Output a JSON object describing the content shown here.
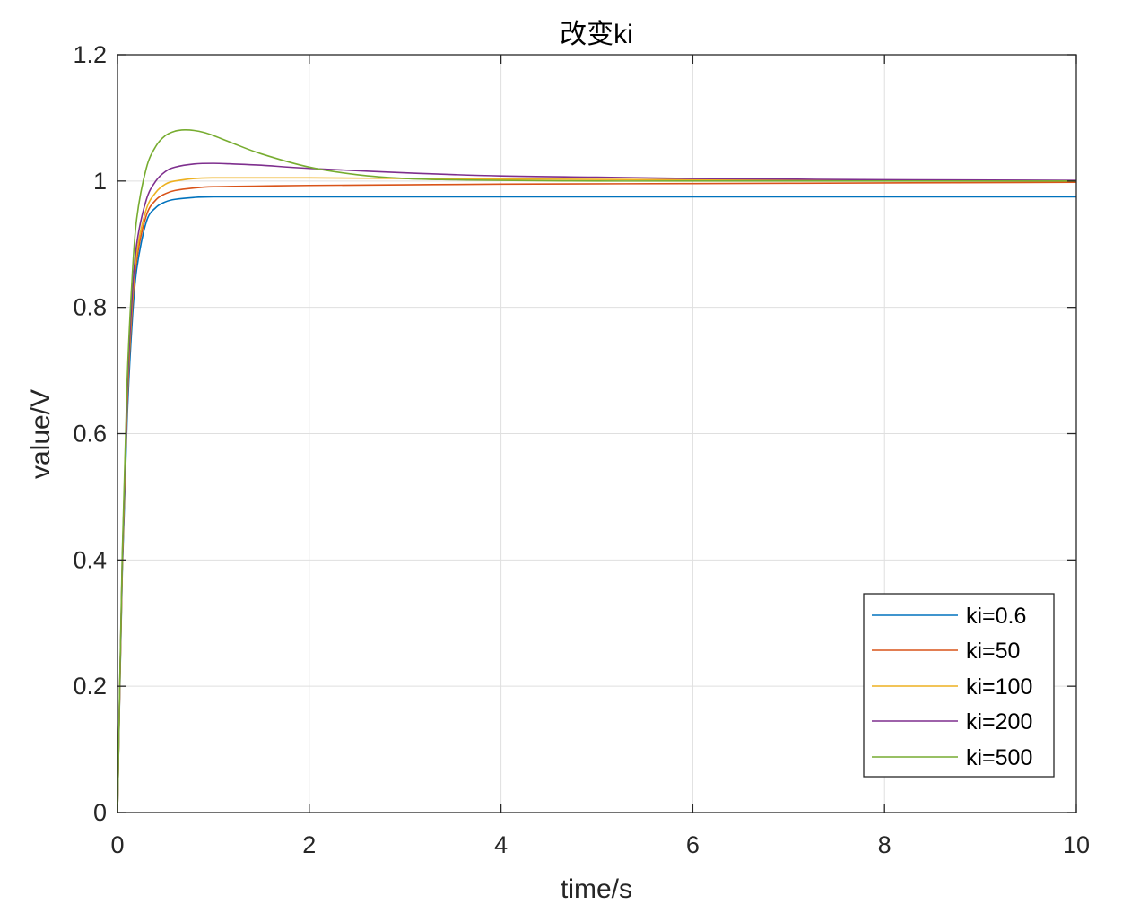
{
  "chart_data": {
    "type": "line",
    "title": "改变ki",
    "xlabel": "time/s",
    "ylabel": "value/V",
    "xlim": [
      0,
      10
    ],
    "ylim": [
      0,
      1.2
    ],
    "xticks": [
      0,
      2,
      4,
      6,
      8,
      10
    ],
    "yticks": [
      0,
      0.2,
      0.4,
      0.6,
      0.8,
      1,
      1.2
    ],
    "xtick_labels": [
      "0",
      "2",
      "4",
      "6",
      "8",
      "10"
    ],
    "ytick_labels": [
      "0",
      "0.2",
      "0.4",
      "0.6",
      "0.8",
      "1",
      "1.2"
    ],
    "grid": true,
    "legend_position": "bottom-right",
    "series": [
      {
        "name": "ki=0.6",
        "color": "#0072BD",
        "x": [
          0,
          0.05,
          0.1,
          0.15,
          0.2,
          0.3,
          0.4,
          0.5,
          0.6,
          0.8,
          1.0,
          1.5,
          2,
          3,
          4,
          6,
          8,
          10
        ],
        "y": [
          0,
          0.38,
          0.62,
          0.77,
          0.86,
          0.935,
          0.958,
          0.967,
          0.971,
          0.974,
          0.975,
          0.975,
          0.975,
          0.975,
          0.975,
          0.975,
          0.975,
          0.975
        ]
      },
      {
        "name": "ki=50",
        "color": "#D95319",
        "x": [
          0,
          0.05,
          0.1,
          0.15,
          0.2,
          0.3,
          0.4,
          0.5,
          0.6,
          0.8,
          1.0,
          1.5,
          2,
          3,
          4,
          6,
          8,
          10
        ],
        "y": [
          0,
          0.39,
          0.64,
          0.79,
          0.875,
          0.945,
          0.97,
          0.98,
          0.985,
          0.989,
          0.991,
          0.992,
          0.993,
          0.994,
          0.995,
          0.996,
          0.997,
          0.998
        ]
      },
      {
        "name": "ki=100",
        "color": "#EDB120",
        "x": [
          0,
          0.05,
          0.1,
          0.15,
          0.2,
          0.3,
          0.4,
          0.5,
          0.6,
          0.8,
          1.0,
          1.5,
          2,
          3,
          4,
          6,
          8,
          10
        ],
        "y": [
          0,
          0.39,
          0.65,
          0.8,
          0.885,
          0.955,
          0.982,
          0.995,
          1.0,
          1.004,
          1.005,
          1.005,
          1.005,
          1.004,
          1.003,
          1.002,
          1.001,
          1.0
        ]
      },
      {
        "name": "ki=200",
        "color": "#7E2F8E",
        "x": [
          0,
          0.05,
          0.1,
          0.15,
          0.2,
          0.3,
          0.4,
          0.5,
          0.6,
          0.8,
          1.0,
          1.2,
          1.5,
          2,
          3,
          4,
          5,
          6,
          8,
          10
        ],
        "y": [
          0,
          0.4,
          0.66,
          0.81,
          0.9,
          0.97,
          1.0,
          1.015,
          1.022,
          1.027,
          1.028,
          1.027,
          1.025,
          1.02,
          1.013,
          1.008,
          1.006,
          1.004,
          1.002,
          1.001
        ]
      },
      {
        "name": "ki=500",
        "color": "#77AC30",
        "x": [
          0,
          0.05,
          0.1,
          0.15,
          0.2,
          0.3,
          0.4,
          0.5,
          0.6,
          0.7,
          0.8,
          0.9,
          1.0,
          1.2,
          1.5,
          2,
          2.5,
          3,
          3.5,
          4,
          5,
          6,
          8,
          10
        ],
        "y": [
          0,
          0.41,
          0.68,
          0.84,
          0.94,
          1.02,
          1.055,
          1.072,
          1.079,
          1.081,
          1.08,
          1.077,
          1.072,
          1.06,
          1.043,
          1.022,
          1.01,
          1.004,
          1.002,
          1.001,
          1.0,
          1.0,
          1.0,
          1.0
        ]
      }
    ]
  }
}
